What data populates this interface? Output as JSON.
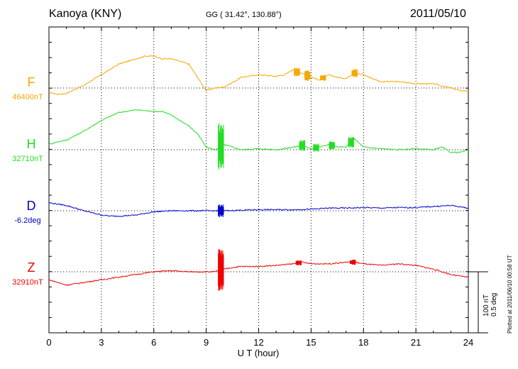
{
  "header": {
    "station": "Kanoya (KNY)",
    "coords": "GG ( 31.42°, 130.88°)",
    "date": "2011/05/10"
  },
  "scale": {
    "nt": "100 nT",
    "deg": "0.5 deg"
  },
  "plotted": "Plotted at 2011/06/10 00:58 UT",
  "chart_data": {
    "type": "line",
    "title": "Kanoya (KNY) 2011/05/10",
    "xlabel": "U T (hour)",
    "xlim": [
      0,
      24
    ],
    "xticks": [
      "0",
      "3",
      "6",
      "9",
      "12",
      "15",
      "18",
      "21",
      "24"
    ],
    "grid": true,
    "series": [
      {
        "name": "F",
        "unit_label": "46400nT",
        "color": "#f5a800",
        "x": [
          0,
          0.5,
          1,
          2,
          3,
          4,
          5,
          5.5,
          6,
          6.5,
          7,
          8,
          8.5,
          9,
          9.5,
          10,
          10.5,
          11,
          12,
          13,
          13.5,
          14,
          14.2,
          14.5,
          15,
          15.5,
          16,
          16.5,
          17,
          17.5,
          18,
          18.5,
          19,
          20,
          21,
          22,
          23,
          23.5,
          24
        ],
        "values": [
          -8,
          -12,
          -10,
          5,
          25,
          45,
          55,
          60,
          60,
          55,
          55,
          45,
          20,
          -5,
          0,
          2,
          10,
          20,
          25,
          22,
          25,
          35,
          30,
          28,
          20,
          15,
          25,
          20,
          18,
          28,
          25,
          18,
          12,
          12,
          8,
          8,
          0,
          -5,
          -5
        ],
        "spikes": [
          {
            "x": 14.2,
            "amp": 8
          },
          {
            "x": 14.8,
            "amp": 10
          },
          {
            "x": 15.7,
            "amp": 7
          },
          {
            "x": 17.5,
            "amp": 8
          }
        ]
      },
      {
        "name": "H",
        "unit_label": "32710nT",
        "color": "#22dd22",
        "x": [
          0,
          0.5,
          1,
          2,
          3,
          4,
          5,
          6,
          6.5,
          7,
          8,
          8.5,
          9,
          9.5,
          9.8,
          10,
          10.5,
          11,
          12,
          13,
          14,
          14.5,
          15,
          15.5,
          16,
          16.5,
          17,
          17.5,
          18,
          19,
          20,
          21,
          22,
          22.5,
          23,
          23.5,
          24
        ],
        "values": [
          10,
          15,
          18,
          35,
          55,
          70,
          75,
          72,
          72,
          65,
          45,
          30,
          5,
          0,
          5,
          10,
          5,
          0,
          2,
          0,
          5,
          8,
          2,
          5,
          10,
          5,
          5,
          20,
          5,
          2,
          0,
          2,
          0,
          5,
          -5,
          -5,
          0
        ],
        "spikes": [
          {
            "x": 9.85,
            "amp": 45
          },
          {
            "x": 14.5,
            "amp": 10
          },
          {
            "x": 15.3,
            "amp": 8
          },
          {
            "x": 16.2,
            "amp": 8
          },
          {
            "x": 17.3,
            "amp": 10
          }
        ]
      },
      {
        "name": "D",
        "unit_label": "-6.2deg",
        "color": "#0000cc",
        "x": [
          0,
          1,
          2,
          3,
          3.5,
          4,
          5,
          6,
          7,
          8,
          9,
          10,
          11,
          12,
          13,
          14,
          15,
          16,
          17,
          18,
          19,
          20,
          21,
          22,
          23,
          24
        ],
        "values": [
          15,
          10,
          0,
          -8,
          -10,
          -10,
          -8,
          -2,
          0,
          0,
          0,
          0,
          1,
          2,
          2,
          2,
          3,
          5,
          5,
          6,
          5,
          6,
          6,
          8,
          10,
          5
        ],
        "spikes": [
          {
            "x": 9.85,
            "amp": 12
          }
        ]
      },
      {
        "name": "Z",
        "unit_label": "32910nT",
        "color": "#ee0000",
        "x": [
          0,
          0.5,
          1,
          2,
          3,
          4,
          5,
          6,
          7,
          8,
          9,
          9.5,
          10,
          10.5,
          11,
          12,
          13,
          14,
          14.5,
          15,
          16,
          17,
          17.5,
          18,
          19,
          20,
          21,
          22,
          23,
          23.5,
          24
        ],
        "values": [
          -15,
          -20,
          -25,
          -20,
          -15,
          -10,
          -5,
          0,
          2,
          0,
          0,
          0,
          5,
          8,
          10,
          10,
          12,
          15,
          18,
          15,
          15,
          18,
          18,
          15,
          12,
          15,
          12,
          5,
          -5,
          -8,
          -10
        ],
        "spikes": [
          {
            "x": 9.85,
            "amp": 40
          },
          {
            "x": 14.3,
            "amp": 5
          },
          {
            "x": 17.4,
            "amp": 5
          }
        ]
      }
    ]
  }
}
